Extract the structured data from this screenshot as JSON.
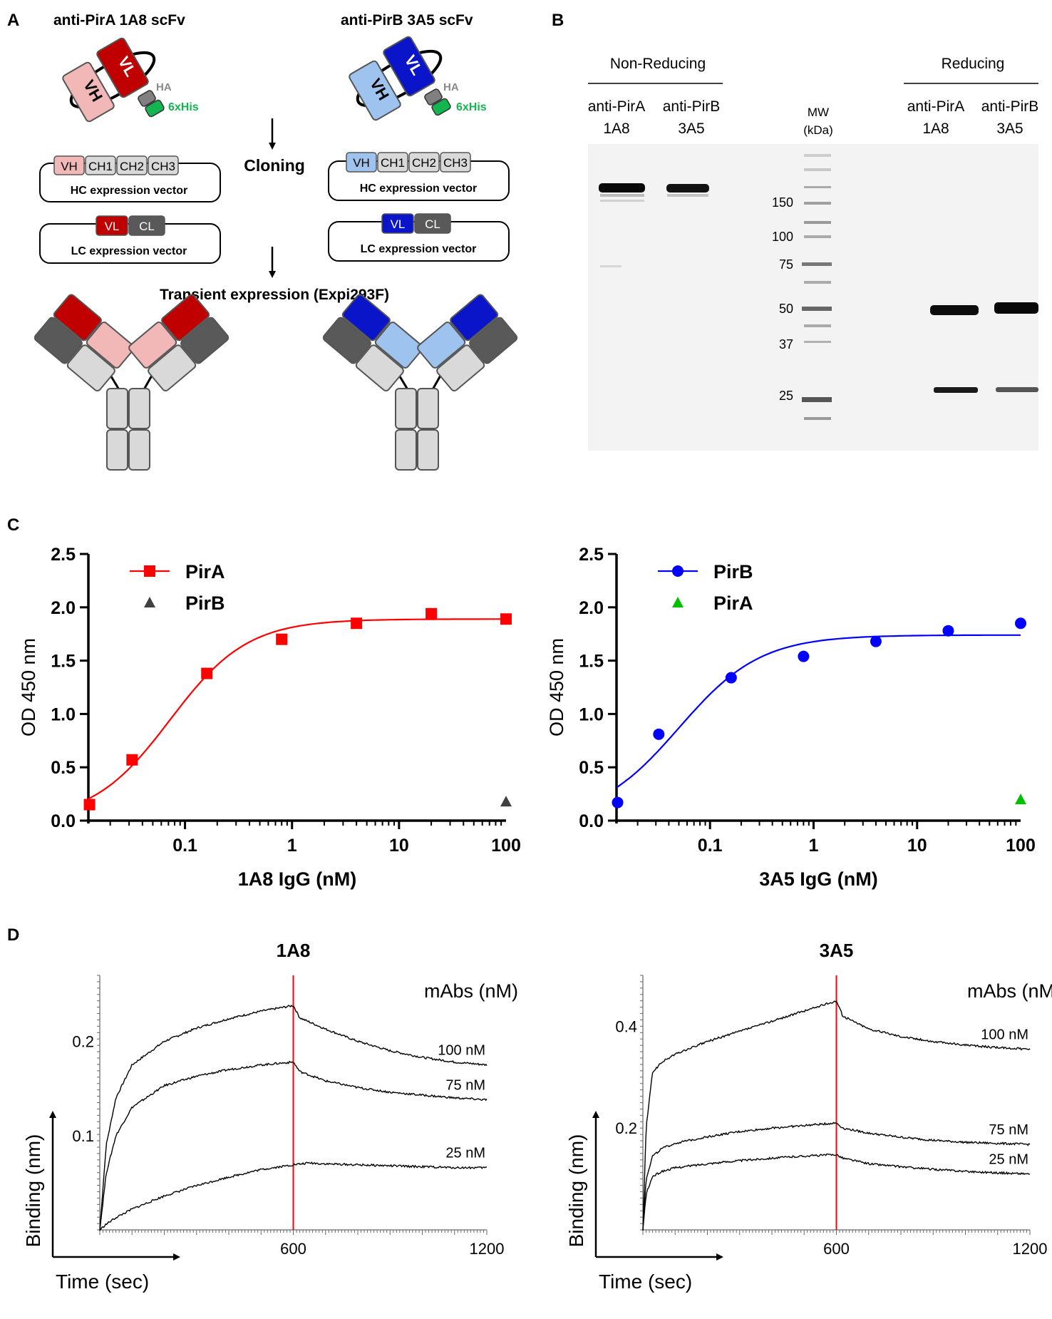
{
  "panels": {
    "a": "A",
    "b": "B",
    "c": "C",
    "d": "D"
  },
  "panelA": {
    "title_left": "anti-PirA 1A8 scFv",
    "title_right": "anti-PirB 3A5 scFv",
    "vh": "VH",
    "vl": "VL",
    "ha": "HA",
    "his": "6xHis",
    "hc_domains": [
      "VH",
      "CH1",
      "CH2",
      "CH3"
    ],
    "lc_domains": [
      "VL",
      "CL"
    ],
    "hc_vector": "HC expression vector",
    "lc_vector": "LC expression vector",
    "cloning": "Cloning",
    "transient": "Transient expression (Expi293F)",
    "colors": {
      "pirA_vl": "#c00000",
      "pirA_vh": "#f2b8b8",
      "pirB_vl": "#0a14c8",
      "pirB_vh": "#9dc3ee",
      "constant_light": "#d9d9d9",
      "constant_dark": "#595959",
      "his": "#14b450"
    }
  },
  "panelB": {
    "non_reducing": "Non-Reducing",
    "reducing": "Reducing",
    "lanes": [
      {
        "line1": "anti-PirA",
        "line2": "1A8"
      },
      {
        "line1": "anti-PirB",
        "line2": "3A5"
      },
      {
        "line1": "anti-PirA",
        "line2": "1A8"
      },
      {
        "line1": "anti-PirB",
        "line2": "3A5"
      }
    ],
    "mw": "MW",
    "kda": "(kDa)",
    "markers": [
      "150",
      "100",
      "75",
      "50",
      "37",
      "25"
    ]
  },
  "chart_data": [
    {
      "type": "scatter",
      "xlabel": "1A8 IgG (nM)",
      "ylabel": "OD 450 nm",
      "xscale": "log",
      "xlim": [
        0.0125,
        100
      ],
      "ylim": [
        0,
        2.5
      ],
      "xticks": [
        "0.1",
        "1",
        "10",
        "100"
      ],
      "yticks": [
        "0.0",
        "0.5",
        "1.0",
        "1.5",
        "2.0",
        "2.5"
      ],
      "legend": "top-left",
      "series": [
        {
          "name": "PirA",
          "color": "#ff0000",
          "marker": "square",
          "fit": true,
          "x": [
            0.0128,
            0.032,
            0.16,
            0.8,
            4,
            20,
            100
          ],
          "y": [
            0.15,
            0.57,
            1.38,
            1.7,
            1.85,
            1.94,
            1.89
          ]
        },
        {
          "name": "PirB",
          "color": "#404040",
          "marker": "triangle",
          "fit": false,
          "x": [
            100
          ],
          "y": [
            0.18
          ]
        }
      ]
    },
    {
      "type": "scatter",
      "xlabel": "3A5 IgG (nM)",
      "ylabel": "OD 450 nm",
      "xscale": "log",
      "xlim": [
        0.0125,
        100
      ],
      "ylim": [
        0,
        2.5
      ],
      "xticks": [
        "0.1",
        "1",
        "10",
        "100"
      ],
      "yticks": [
        "0.0",
        "0.5",
        "1.0",
        "1.5",
        "2.0",
        "2.5"
      ],
      "legend": "top-left",
      "series": [
        {
          "name": "PirB",
          "color": "#0000ff",
          "marker": "circle",
          "fit": true,
          "x": [
            0.0128,
            0.032,
            0.16,
            0.8,
            4,
            20,
            100
          ],
          "y": [
            0.17,
            0.81,
            1.34,
            1.54,
            1.68,
            1.78,
            1.85
          ]
        },
        {
          "name": "PirA",
          "color": "#00c000",
          "marker": "triangle",
          "fit": false,
          "x": [
            100
          ],
          "y": [
            0.2
          ]
        }
      ]
    },
    {
      "type": "line",
      "title": "1A8",
      "xlabel": "Time (sec)",
      "ylabel": "Binding (nm)",
      "xlim": [
        0,
        1200
      ],
      "ylim": [
        0,
        0.27
      ],
      "xticks": [
        "600",
        "1200"
      ],
      "yticks": [
        "0.1",
        "0.2"
      ],
      "legend_title": "mAbs (nM)",
      "vline_x": 600,
      "vline_color": "#ff0000",
      "series": [
        {
          "name": "100 nM",
          "x": [
            0,
            20,
            50,
            100,
            200,
            300,
            400,
            500,
            600,
            620,
            700,
            800,
            900,
            1000,
            1100,
            1200
          ],
          "y": [
            0.0,
            0.09,
            0.14,
            0.175,
            0.2,
            0.214,
            0.224,
            0.232,
            0.238,
            0.225,
            0.213,
            0.2,
            0.19,
            0.183,
            0.178,
            0.175
          ]
        },
        {
          "name": "75 nM",
          "x": [
            0,
            20,
            50,
            100,
            200,
            300,
            400,
            500,
            600,
            620,
            700,
            800,
            900,
            1000,
            1100,
            1200
          ],
          "y": [
            0.0,
            0.06,
            0.1,
            0.13,
            0.153,
            0.163,
            0.17,
            0.175,
            0.178,
            0.168,
            0.158,
            0.151,
            0.146,
            0.143,
            0.14,
            0.138
          ]
        },
        {
          "name": "25 nM",
          "x": [
            0,
            20,
            50,
            100,
            200,
            300,
            400,
            500,
            600,
            650,
            700,
            800,
            900,
            1000,
            1100,
            1200
          ],
          "y": [
            0.0,
            0.006,
            0.013,
            0.022,
            0.036,
            0.047,
            0.056,
            0.064,
            0.069,
            0.071,
            0.07,
            0.069,
            0.068,
            0.067,
            0.066,
            0.066
          ]
        }
      ]
    },
    {
      "type": "line",
      "title": "3A5",
      "xlabel": "Time (sec)",
      "ylabel": "Binding (nm)",
      "xlim": [
        0,
        1200
      ],
      "ylim": [
        0,
        0.5
      ],
      "xticks": [
        "600",
        "1200"
      ],
      "yticks": [
        "0.2",
        "0.4"
      ],
      "legend_title": "mAbs (nM)",
      "vline_x": 600,
      "vline_color": "#ff0000",
      "series": [
        {
          "name": "100 nM",
          "x": [
            0,
            10,
            30,
            60,
            100,
            200,
            300,
            400,
            500,
            600,
            620,
            700,
            800,
            900,
            1000,
            1100,
            1200
          ],
          "y": [
            0.0,
            0.2,
            0.31,
            0.33,
            0.345,
            0.37,
            0.39,
            0.41,
            0.43,
            0.45,
            0.42,
            0.395,
            0.38,
            0.37,
            0.363,
            0.358,
            0.355
          ]
        },
        {
          "name": "75 nM",
          "x": [
            0,
            10,
            30,
            60,
            100,
            200,
            300,
            400,
            500,
            600,
            620,
            700,
            800,
            900,
            1000,
            1100,
            1200
          ],
          "y": [
            0.0,
            0.1,
            0.145,
            0.16,
            0.17,
            0.183,
            0.193,
            0.2,
            0.205,
            0.21,
            0.2,
            0.19,
            0.182,
            0.176,
            0.172,
            0.17,
            0.168
          ]
        },
        {
          "name": "25 nM",
          "x": [
            0,
            10,
            30,
            60,
            100,
            200,
            300,
            400,
            500,
            600,
            620,
            700,
            800,
            900,
            1000,
            1100,
            1200
          ],
          "y": [
            0.0,
            0.07,
            0.105,
            0.115,
            0.122,
            0.13,
            0.136,
            0.141,
            0.145,
            0.148,
            0.141,
            0.13,
            0.124,
            0.119,
            0.115,
            0.112,
            0.11
          ]
        }
      ]
    }
  ]
}
